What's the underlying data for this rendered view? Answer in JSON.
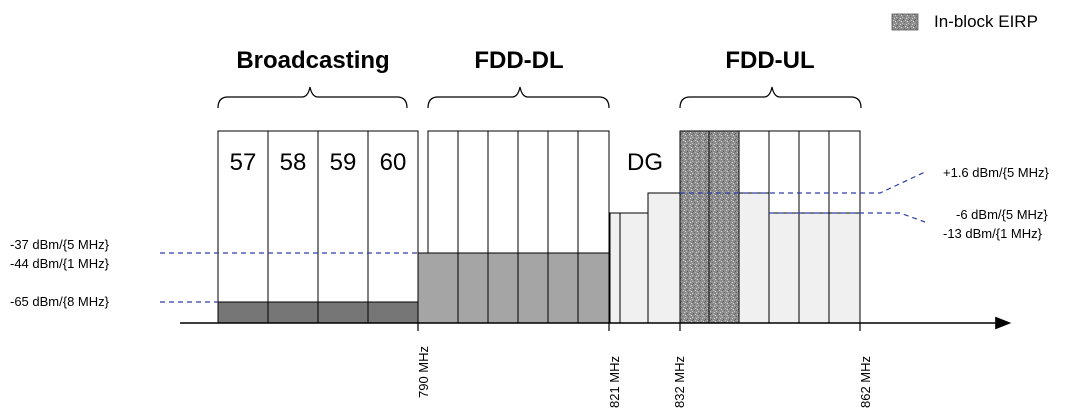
{
  "legend": {
    "label": "In-block EIRP",
    "swatch_icon": "speckled-texture-icon"
  },
  "groups": {
    "broadcasting": "Broadcasting",
    "fdd_dl": "FDD-DL",
    "fdd_ul": "FDD-UL"
  },
  "channels": [
    "57",
    "58",
    "59",
    "60"
  ],
  "dg_label": "DG",
  "limits": {
    "a": "-37 dBm/{5 MHz}",
    "b": "-44 dBm/{1 MHz}",
    "c": "-65 dBm/{8 MHz}",
    "d": "+1.6 dBm/{5 MHz}",
    "e": "-6 dBm/{5 MHz}",
    "f": "-13 dBm/{1 MHz}"
  },
  "frequencies": [
    "790 MHz",
    "821 MHz",
    "832 MHz",
    "862 MHz"
  ],
  "colors": {
    "broadcast_fill": "#767676",
    "dl_fill": "#a5a5a5",
    "ul_fill": "#f0f0f0",
    "dashed_line": "#2e3ea8",
    "speckle_base": "#8e8e8e"
  }
}
